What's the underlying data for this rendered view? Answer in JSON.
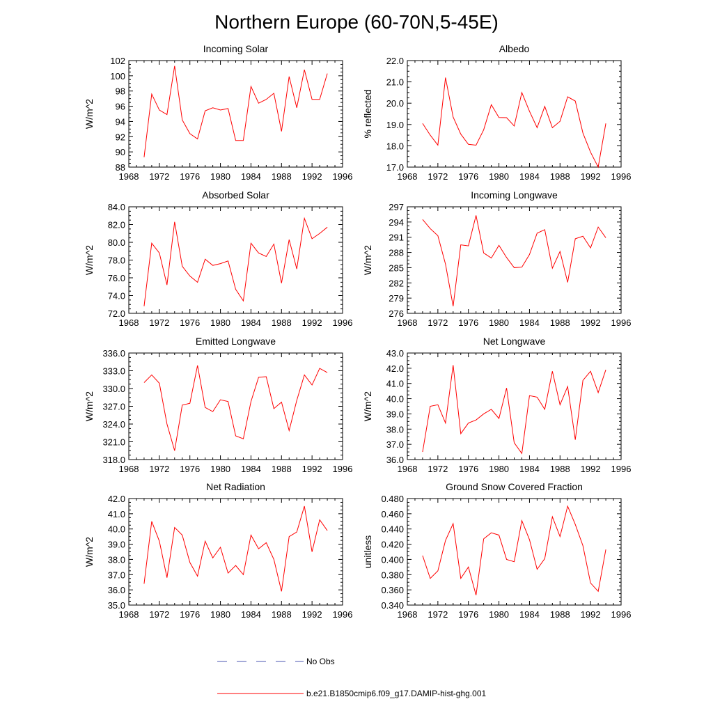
{
  "figure": {
    "title": "Northern Europe (60-70N,5-45E)",
    "colors": {
      "model_line": "#ff0000",
      "obs_line": "#4a55b0",
      "axis": "#000000"
    }
  },
  "legend": {
    "obs_label": "No Obs",
    "model_label": "b.e21.B1850cmip6.f09_g17.DAMIP-hist-ghg.001"
  },
  "chart_data": [
    {
      "type": "line",
      "title": "Incoming Solar",
      "xlabel": "",
      "ylabel": "W/m^2",
      "xlim": [
        1968,
        1996
      ],
      "ylim": [
        88,
        102
      ],
      "xticks": [
        "1968",
        "1972",
        "1976",
        "1980",
        "1984",
        "1988",
        "1992",
        "1996"
      ],
      "yticks": [
        "88",
        "90",
        "92",
        "94",
        "96",
        "98",
        "100",
        "102"
      ],
      "x": [
        1970,
        1971,
        1972,
        1973,
        1974,
        1975,
        1976,
        1977,
        1978,
        1979,
        1980,
        1981,
        1982,
        1983,
        1984,
        1985,
        1986,
        1987,
        1988,
        1989,
        1990,
        1991,
        1992,
        1993,
        1994
      ],
      "series": [
        {
          "values": [
            89.3,
            97.6,
            95.5,
            94.9,
            101.3,
            94.2,
            92.4,
            91.7,
            95.4,
            95.8,
            95.5,
            95.7,
            91.5,
            91.5,
            98.6,
            96.4,
            96.9,
            97.7,
            92.7,
            99.9,
            95.8,
            100.8,
            96.9,
            96.9,
            100.3
          ]
        }
      ]
    },
    {
      "type": "line",
      "title": "Albedo",
      "xlabel": "",
      "ylabel": "% reflected",
      "xlim": [
        1968,
        1996
      ],
      "ylim": [
        17.0,
        22.0
      ],
      "xticks": [
        "1968",
        "1972",
        "1976",
        "1980",
        "1984",
        "1988",
        "1992",
        "1996"
      ],
      "yticks": [
        "17.0",
        "18.0",
        "19.0",
        "20.0",
        "21.0",
        "22.0"
      ],
      "x": [
        1970,
        1971,
        1972,
        1973,
        1974,
        1975,
        1976,
        1977,
        1978,
        1979,
        1980,
        1981,
        1982,
        1983,
        1984,
        1985,
        1986,
        1987,
        1988,
        1989,
        1990,
        1991,
        1992,
        1993,
        1994
      ],
      "series": [
        {
          "values": [
            19.05,
            18.5,
            18.03,
            21.2,
            19.35,
            18.55,
            18.07,
            18.03,
            18.75,
            19.93,
            19.33,
            19.32,
            18.93,
            20.5,
            19.62,
            18.85,
            19.85,
            18.85,
            19.15,
            20.3,
            20.1,
            18.6,
            17.7,
            17.0,
            19.05
          ]
        }
      ]
    },
    {
      "type": "line",
      "title": "Absorbed Solar",
      "xlabel": "",
      "ylabel": "W/m^2",
      "xlim": [
        1968,
        1996
      ],
      "ylim": [
        72.0,
        84.0
      ],
      "xticks": [
        "1968",
        "1972",
        "1976",
        "1980",
        "1984",
        "1988",
        "1992",
        "1996"
      ],
      "yticks": [
        "72.0",
        "74.0",
        "76.0",
        "78.0",
        "80.0",
        "82.0",
        "84.0"
      ],
      "x": [
        1970,
        1971,
        1972,
        1973,
        1974,
        1975,
        1976,
        1977,
        1978,
        1979,
        1980,
        1981,
        1982,
        1983,
        1984,
        1985,
        1986,
        1987,
        1988,
        1989,
        1990,
        1991,
        1992,
        1993,
        1994
      ],
      "series": [
        {
          "values": [
            72.8,
            79.9,
            78.8,
            75.2,
            82.3,
            77.3,
            76.2,
            75.5,
            78.1,
            77.4,
            77.6,
            77.9,
            74.7,
            73.4,
            79.9,
            78.8,
            78.4,
            79.8,
            75.4,
            80.3,
            77.0,
            82.7,
            80.4,
            81.0,
            81.7
          ]
        }
      ]
    },
    {
      "type": "line",
      "title": "Incoming Longwave",
      "xlabel": "",
      "ylabel": "W/m^2",
      "xlim": [
        1968,
        1996
      ],
      "ylim": [
        276,
        297
      ],
      "xticks": [
        "1968",
        "1972",
        "1976",
        "1980",
        "1984",
        "1988",
        "1992",
        "1996"
      ],
      "yticks": [
        "276",
        "279",
        "282",
        "285",
        "288",
        "291",
        "294",
        "297"
      ],
      "x": [
        1970,
        1971,
        1972,
        1973,
        1974,
        1975,
        1976,
        1977,
        1978,
        1979,
        1980,
        1981,
        1982,
        1983,
        1984,
        1985,
        1986,
        1987,
        1988,
        1989,
        1990,
        1991,
        1992,
        1993,
        1994
      ],
      "series": [
        {
          "values": [
            294.5,
            292.7,
            291.3,
            285.7,
            277.4,
            289.5,
            289.3,
            295.3,
            287.9,
            286.9,
            289.4,
            287.0,
            285.0,
            285.1,
            287.6,
            291.8,
            292.5,
            284.9,
            288.2,
            282.1,
            290.7,
            291.2,
            288.9,
            293.0,
            290.9
          ]
        }
      ]
    },
    {
      "type": "line",
      "title": "Emitted Longwave",
      "xlabel": "",
      "ylabel": "W/m^2",
      "xlim": [
        1968,
        1996
      ],
      "ylim": [
        318.0,
        336.0
      ],
      "xticks": [
        "1968",
        "1972",
        "1976",
        "1980",
        "1984",
        "1988",
        "1992",
        "1996"
      ],
      "yticks": [
        "318.0",
        "321.0",
        "324.0",
        "327.0",
        "330.0",
        "333.0",
        "336.0"
      ],
      "x": [
        1970,
        1971,
        1972,
        1973,
        1974,
        1975,
        1976,
        1977,
        1978,
        1979,
        1980,
        1981,
        1982,
        1983,
        1984,
        1985,
        1986,
        1987,
        1988,
        1989,
        1990,
        1991,
        1992,
        1993,
        1994
      ],
      "series": [
        {
          "values": [
            331.0,
            332.3,
            330.9,
            324.0,
            319.5,
            327.2,
            327.5,
            333.9,
            326.8,
            326.1,
            328.1,
            327.8,
            322.0,
            321.5,
            327.8,
            331.9,
            332.0,
            326.6,
            327.7,
            322.9,
            328.0,
            332.3,
            330.6,
            333.4,
            332.7
          ]
        }
      ]
    },
    {
      "type": "line",
      "title": "Net Longwave",
      "xlabel": "",
      "ylabel": "W/m^2",
      "xlim": [
        1968,
        1996
      ],
      "ylim": [
        36.0,
        43.0
      ],
      "xticks": [
        "1968",
        "1972",
        "1976",
        "1980",
        "1984",
        "1988",
        "1992",
        "1996"
      ],
      "yticks": [
        "36.0",
        "37.0",
        "38.0",
        "39.0",
        "40.0",
        "41.0",
        "42.0",
        "43.0"
      ],
      "x": [
        1970,
        1971,
        1972,
        1973,
        1974,
        1975,
        1976,
        1977,
        1978,
        1979,
        1980,
        1981,
        1982,
        1983,
        1984,
        1985,
        1986,
        1987,
        1988,
        1989,
        1990,
        1991,
        1992,
        1993,
        1994
      ],
      "series": [
        {
          "values": [
            36.5,
            39.5,
            39.6,
            38.4,
            42.2,
            37.7,
            38.4,
            38.6,
            39.0,
            39.3,
            38.7,
            40.7,
            37.1,
            36.4,
            40.2,
            40.1,
            39.3,
            41.8,
            39.6,
            40.8,
            37.3,
            41.2,
            41.8,
            40.4,
            41.9
          ]
        }
      ]
    },
    {
      "type": "line",
      "title": "Net Radiation",
      "xlabel": "",
      "ylabel": "W/m^2",
      "xlim": [
        1968,
        1996
      ],
      "ylim": [
        35.0,
        42.0
      ],
      "xticks": [
        "1968",
        "1972",
        "1976",
        "1980",
        "1984",
        "1988",
        "1992",
        "1996"
      ],
      "yticks": [
        "35.0",
        "36.0",
        "37.0",
        "38.0",
        "39.0",
        "40.0",
        "41.0",
        "42.0"
      ],
      "x": [
        1970,
        1971,
        1972,
        1973,
        1974,
        1975,
        1976,
        1977,
        1978,
        1979,
        1980,
        1981,
        1982,
        1983,
        1984,
        1985,
        1986,
        1987,
        1988,
        1989,
        1990,
        1991,
        1992,
        1993,
        1994
      ],
      "series": [
        {
          "values": [
            36.4,
            40.5,
            39.2,
            36.8,
            40.1,
            39.6,
            37.8,
            36.9,
            39.2,
            38.1,
            38.8,
            37.1,
            37.6,
            37.0,
            39.6,
            38.7,
            39.1,
            38.0,
            35.9,
            39.5,
            39.8,
            41.5,
            38.5,
            40.6,
            39.9
          ]
        }
      ]
    },
    {
      "type": "line",
      "title": "Ground Snow Covered Fraction",
      "xlabel": "",
      "ylabel": "unitless",
      "xlim": [
        1968,
        1996
      ],
      "ylim": [
        0.34,
        0.48
      ],
      "xticks": [
        "1968",
        "1972",
        "1976",
        "1980",
        "1984",
        "1988",
        "1992",
        "1996"
      ],
      "yticks": [
        "0.340",
        "0.360",
        "0.380",
        "0.400",
        "0.420",
        "0.440",
        "0.460",
        "0.480"
      ],
      "x": [
        1970,
        1971,
        1972,
        1973,
        1974,
        1975,
        1976,
        1977,
        1978,
        1979,
        1980,
        1981,
        1982,
        1983,
        1984,
        1985,
        1986,
        1987,
        1988,
        1989,
        1990,
        1991,
        1992,
        1993,
        1994
      ],
      "series": [
        {
          "values": [
            0.405,
            0.375,
            0.385,
            0.425,
            0.447,
            0.375,
            0.39,
            0.353,
            0.427,
            0.435,
            0.432,
            0.4,
            0.397,
            0.451,
            0.426,
            0.387,
            0.401,
            0.456,
            0.43,
            0.47,
            0.446,
            0.418,
            0.369,
            0.358,
            0.413
          ]
        }
      ]
    }
  ]
}
